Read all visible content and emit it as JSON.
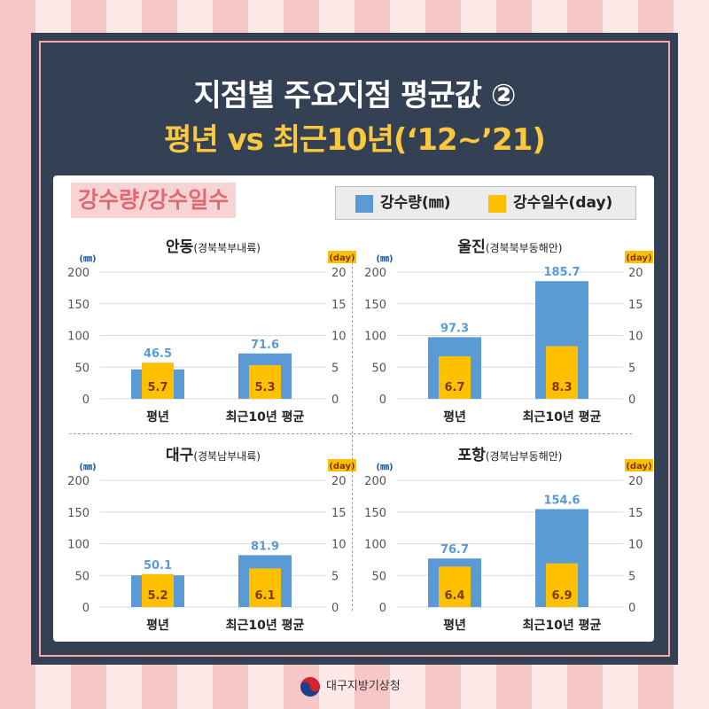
{
  "header": {
    "title_line1": "지점별 주요지점 평균값 ②",
    "title_line2": "평년 vs 최근10년(‘12~’21)"
  },
  "section_tag": "강수량/강수일수",
  "legend": {
    "precip_label": "강수량(㎜)",
    "days_label": "강수일수(day)",
    "precip_color": "#5b9bd5",
    "days_color": "#ffc000"
  },
  "footer": {
    "agency": "대구지방기상청",
    "logo_icon": "taegeuk-icon"
  },
  "chart_data": [
    {
      "type": "bar",
      "title": "안동",
      "subtitle": "(경북북부내륙)",
      "categories": [
        "평년",
        "최근10년 평균"
      ],
      "series": [
        {
          "name": "강수량(㎜)",
          "values": [
            46.5,
            71.6
          ],
          "axis": "left"
        },
        {
          "name": "강수일수(day)",
          "values": [
            5.7,
            5.3
          ],
          "axis": "right"
        }
      ],
      "ylabel": "(㎜)",
      "ylim": [
        0,
        200
      ],
      "yticks": [
        "200",
        "150",
        "100",
        "50",
        "0"
      ],
      "y2label": "(day)",
      "y2lim": [
        0,
        20
      ],
      "y2ticks": [
        "20",
        "15",
        "10",
        "5",
        "0"
      ]
    },
    {
      "type": "bar",
      "title": "울진",
      "subtitle": "(경북북부동해안)",
      "categories": [
        "평년",
        "최근10년 평균"
      ],
      "series": [
        {
          "name": "강수량(㎜)",
          "values": [
            97.3,
            185.7
          ],
          "axis": "left"
        },
        {
          "name": "강수일수(day)",
          "values": [
            6.7,
            8.3
          ],
          "axis": "right"
        }
      ],
      "ylabel": "(㎜)",
      "ylim": [
        0,
        200
      ],
      "yticks": [
        "200",
        "150",
        "100",
        "50",
        "0"
      ],
      "y2label": "(day)",
      "y2lim": [
        0,
        20
      ],
      "y2ticks": [
        "20",
        "15",
        "10",
        "5",
        "0"
      ]
    },
    {
      "type": "bar",
      "title": "대구",
      "subtitle": "(경북남부내륙)",
      "categories": [
        "평년",
        "최근10년 평균"
      ],
      "series": [
        {
          "name": "강수량(㎜)",
          "values": [
            50.1,
            81.9
          ],
          "axis": "left"
        },
        {
          "name": "강수일수(day)",
          "values": [
            5.2,
            6.1
          ],
          "axis": "right"
        }
      ],
      "ylabel": "(㎜)",
      "ylim": [
        0,
        200
      ],
      "yticks": [
        "200",
        "150",
        "100",
        "50",
        "0"
      ],
      "y2label": "(day)",
      "y2lim": [
        0,
        20
      ],
      "y2ticks": [
        "20",
        "15",
        "10",
        "5",
        "0"
      ]
    },
    {
      "type": "bar",
      "title": "포항",
      "subtitle": "(경북남부동해안)",
      "categories": [
        "평년",
        "최근10년 평균"
      ],
      "series": [
        {
          "name": "강수량(㎜)",
          "values": [
            76.7,
            154.6
          ],
          "axis": "left"
        },
        {
          "name": "강수일수(day)",
          "values": [
            6.4,
            6.9
          ],
          "axis": "right"
        }
      ],
      "ylabel": "(㎜)",
      "ylim": [
        0,
        200
      ],
      "yticks": [
        "200",
        "150",
        "100",
        "50",
        "0"
      ],
      "y2label": "(day)",
      "y2lim": [
        0,
        20
      ],
      "y2ticks": [
        "20",
        "15",
        "10",
        "5",
        "0"
      ]
    }
  ]
}
